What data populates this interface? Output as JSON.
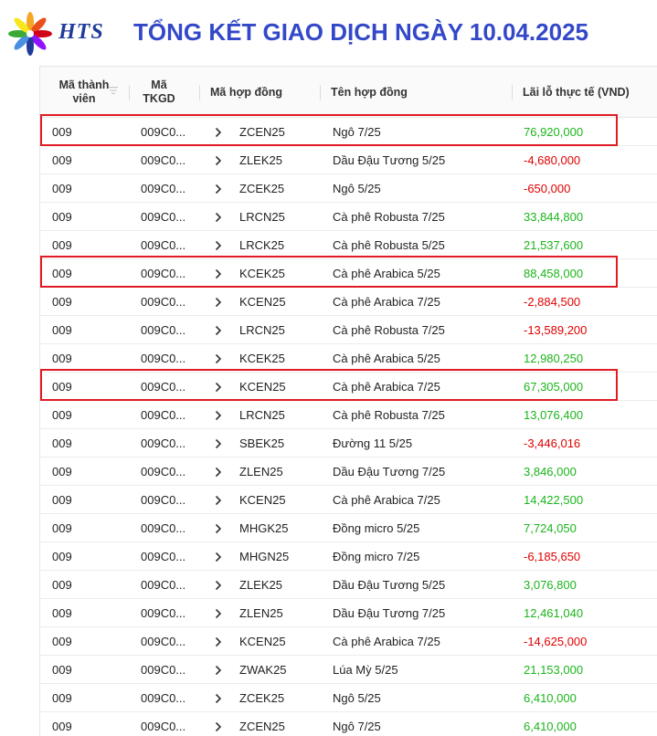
{
  "header": {
    "logo_text": "HTS",
    "title": "TỔNG KẾT GIAO DỊCH NGÀY 10.04.2025"
  },
  "table": {
    "columns": {
      "member_line1": "Mã thành",
      "member_line2": "viên",
      "tkgd_line1": "Mã",
      "tkgd_line2": "TKGD",
      "contract_code": "Mã hợp đồng",
      "contract_name": "Tên hợp đồng",
      "pnl": "Lãi lỗ thực tế (VND)"
    },
    "rows": [
      {
        "member": "009",
        "tkgd": "009C0...",
        "code": "ZCEN25",
        "name": "Ngô 7/25",
        "pnl": "76,920,000",
        "sign": "pos",
        "highlighted": true
      },
      {
        "member": "009",
        "tkgd": "009C0...",
        "code": "ZLEK25",
        "name": "Dầu Đậu Tương 5/25",
        "pnl": "-4,680,000",
        "sign": "neg",
        "highlighted": false
      },
      {
        "member": "009",
        "tkgd": "009C0...",
        "code": "ZCEK25",
        "name": "Ngô 5/25",
        "pnl": "-650,000",
        "sign": "neg",
        "highlighted": false
      },
      {
        "member": "009",
        "tkgd": "009C0...",
        "code": "LRCN25",
        "name": "Cà phê Robusta 7/25",
        "pnl": "33,844,800",
        "sign": "pos",
        "highlighted": false
      },
      {
        "member": "009",
        "tkgd": "009C0...",
        "code": "LRCK25",
        "name": "Cà phê Robusta 5/25",
        "pnl": "21,537,600",
        "sign": "pos",
        "highlighted": false
      },
      {
        "member": "009",
        "tkgd": "009C0...",
        "code": "KCEK25",
        "name": "Cà phê Arabica 5/25",
        "pnl": "88,458,000",
        "sign": "pos",
        "highlighted": true
      },
      {
        "member": "009",
        "tkgd": "009C0...",
        "code": "KCEN25",
        "name": "Cà phê Arabica 7/25",
        "pnl": "-2,884,500",
        "sign": "neg",
        "highlighted": false
      },
      {
        "member": "009",
        "tkgd": "009C0...",
        "code": "LRCN25",
        "name": "Cà phê Robusta 7/25",
        "pnl": "-13,589,200",
        "sign": "neg",
        "highlighted": false
      },
      {
        "member": "009",
        "tkgd": "009C0...",
        "code": "KCEK25",
        "name": "Cà phê Arabica 5/25",
        "pnl": "12,980,250",
        "sign": "pos",
        "highlighted": false
      },
      {
        "member": "009",
        "tkgd": "009C0...",
        "code": "KCEN25",
        "name": "Cà phê Arabica 7/25",
        "pnl": "67,305,000",
        "sign": "pos",
        "highlighted": true
      },
      {
        "member": "009",
        "tkgd": "009C0...",
        "code": "LRCN25",
        "name": "Cà phê Robusta 7/25",
        "pnl": "13,076,400",
        "sign": "pos",
        "highlighted": false
      },
      {
        "member": "009",
        "tkgd": "009C0...",
        "code": "SBEK25",
        "name": "Đường 11 5/25",
        "pnl": "-3,446,016",
        "sign": "neg",
        "highlighted": false
      },
      {
        "member": "009",
        "tkgd": "009C0...",
        "code": "ZLEN25",
        "name": "Dầu Đậu Tương 7/25",
        "pnl": "3,846,000",
        "sign": "pos",
        "highlighted": false
      },
      {
        "member": "009",
        "tkgd": "009C0...",
        "code": "KCEN25",
        "name": "Cà phê Arabica 7/25",
        "pnl": "14,422,500",
        "sign": "pos",
        "highlighted": false
      },
      {
        "member": "009",
        "tkgd": "009C0...",
        "code": "MHGK25",
        "name": "Đồng micro 5/25",
        "pnl": "7,724,050",
        "sign": "pos",
        "highlighted": false
      },
      {
        "member": "009",
        "tkgd": "009C0...",
        "code": "MHGN25",
        "name": "Đồng micro 7/25",
        "pnl": "-6,185,650",
        "sign": "neg",
        "highlighted": false
      },
      {
        "member": "009",
        "tkgd": "009C0...",
        "code": "ZLEK25",
        "name": "Dầu Đậu Tương 5/25",
        "pnl": "3,076,800",
        "sign": "pos",
        "highlighted": false
      },
      {
        "member": "009",
        "tkgd": "009C0...",
        "code": "ZLEN25",
        "name": "Dầu Đậu Tương 7/25",
        "pnl": "12,461,040",
        "sign": "pos",
        "highlighted": false
      },
      {
        "member": "009",
        "tkgd": "009C0...",
        "code": "KCEN25",
        "name": "Cà phê Arabica 7/25",
        "pnl": "-14,625,000",
        "sign": "neg",
        "highlighted": false
      },
      {
        "member": "009",
        "tkgd": "009C0...",
        "code": "ZWAK25",
        "name": "Lúa Mỳ 5/25",
        "pnl": "21,153,000",
        "sign": "pos",
        "highlighted": false
      },
      {
        "member": "009",
        "tkgd": "009C0...",
        "code": "ZCEK25",
        "name": "Ngô 5/25",
        "pnl": "6,410,000",
        "sign": "pos",
        "highlighted": false
      },
      {
        "member": "009",
        "tkgd": "009C0...",
        "code": "ZCEN25",
        "name": "Ngô 7/25",
        "pnl": "6,410,000",
        "sign": "pos",
        "highlighted": false
      }
    ]
  },
  "colors": {
    "title": "#3348c8",
    "positive": "#1bb51b",
    "negative": "#e00000",
    "highlight_border": "#e01b24"
  },
  "icons": {
    "logo": "hts-sunburst-logo",
    "filter": "filter-icon",
    "expand": "chevron-right-icon"
  }
}
